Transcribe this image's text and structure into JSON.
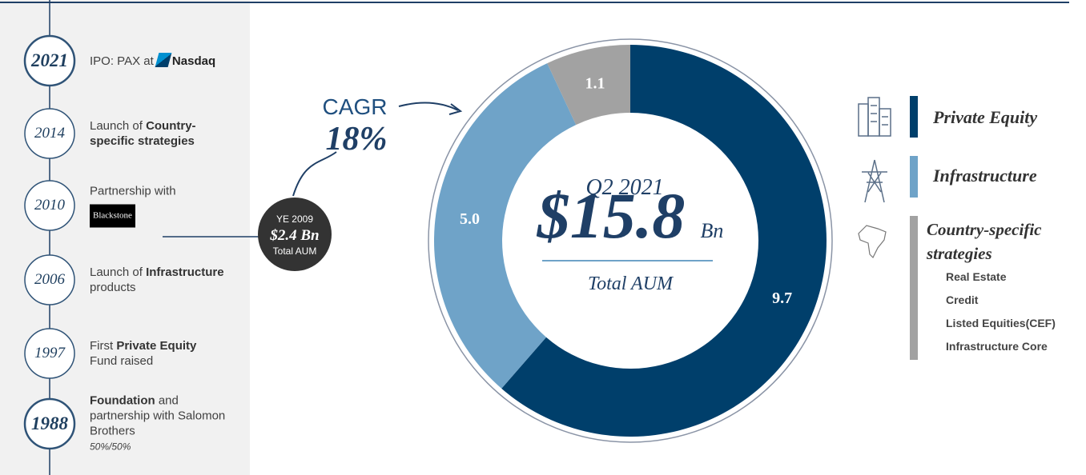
{
  "chart_data": {
    "type": "donut",
    "categories": [
      "Private Equity",
      "Infrastructure",
      "Country-specific strategies"
    ],
    "values": [
      9.7,
      5.0,
      1.1
    ],
    "value_labels": [
      "9.7",
      "5.0",
      "1.1"
    ],
    "colors": [
      "#003f6b",
      "#6fa3c8",
      "#a2a2a2"
    ],
    "sub_categories": [
      "Real Estate",
      "Credit",
      "Listed Equities(CEF)",
      "Infrastructure Core"
    ],
    "center": {
      "period": "Q2 2021",
      "value": "$15.8",
      "unit": "Bn",
      "label": "Total AUM"
    }
  },
  "growth": {
    "label": "CAGR",
    "value": "18%",
    "base_period": "YE 2009",
    "base_value": "$2.4 Bn",
    "base_label": "Total AUM"
  },
  "timeline": [
    {
      "year": "2021",
      "emphasis": true,
      "runs": [
        {
          "text": "IPO: PAX at ",
          "b": false
        }
      ],
      "logo": {
        "text": "Nasdaq",
        "style": "nasdaq"
      }
    },
    {
      "year": "2014",
      "emphasis": false,
      "runs": [
        {
          "text": "Launch of ",
          "b": false
        },
        {
          "text": "Country-specific strategies",
          "b": true
        }
      ]
    },
    {
      "year": "2010",
      "emphasis": false,
      "runs": [
        {
          "text": "Partnership with",
          "b": false
        }
      ],
      "logo": {
        "text": "Blackstone",
        "style": "blackstone"
      }
    },
    {
      "year": "2006",
      "emphasis": false,
      "runs": [
        {
          "text": "Launch of ",
          "b": false
        },
        {
          "text": "Infrastructure",
          "b": true
        },
        {
          "text": " products",
          "b": false
        }
      ]
    },
    {
      "year": "1997",
      "emphasis": false,
      "runs": [
        {
          "text": "First ",
          "b": false
        },
        {
          "text": "Private Equity",
          "b": true
        },
        {
          "text": " Fund raised",
          "b": false
        }
      ]
    },
    {
      "year": "1988",
      "emphasis": true,
      "runs": [
        {
          "text": "Foundation",
          "b": true
        },
        {
          "text": " and partnership with Salomon Brothers",
          "b": false
        }
      ],
      "note": "50%/50%"
    }
  ]
}
